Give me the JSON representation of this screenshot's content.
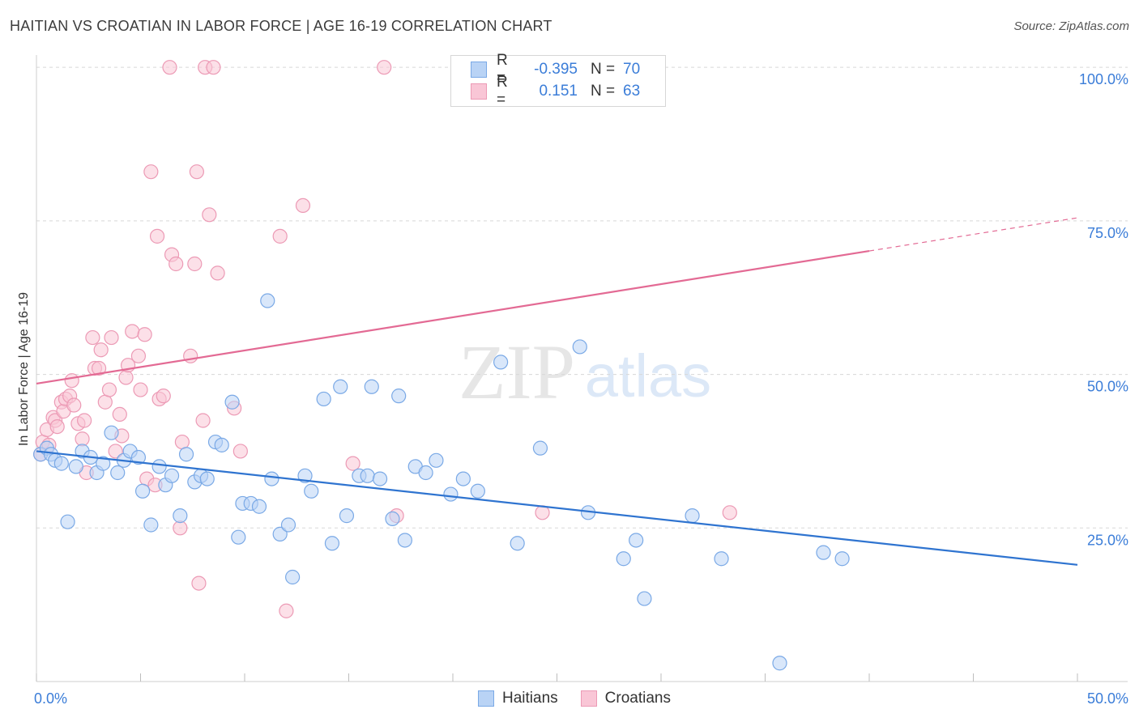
{
  "title": "HAITIAN VS CROATIAN IN LABOR FORCE | AGE 16-19 CORRELATION CHART",
  "source": "Source: ZipAtlas.com",
  "watermark": {
    "zip": "ZIP",
    "atlas": "atlas"
  },
  "colors": {
    "blue_fill": "#b9d3f5",
    "blue_stroke": "#7aa9e6",
    "blue_line": "#2f74d0",
    "pink_fill": "#f9c6d6",
    "pink_stroke": "#ec9ab5",
    "pink_line": "#e36a94",
    "grid": "#d8d8d8",
    "axis_text": "#3b7dd8"
  },
  "legend": {
    "rows": [
      {
        "r_label": "R =",
        "r_value": "-0.395",
        "n_label": "N =",
        "n_value": "70"
      },
      {
        "r_label": "R =",
        "r_value": "0.151",
        "n_label": "N =",
        "n_value": "63"
      }
    ]
  },
  "bottom_legend": {
    "haitians": "Haitians",
    "croatians": "Croatians"
  },
  "chart_data": {
    "type": "scatter",
    "title": "HAITIAN VS CROATIAN IN LABOR FORCE | AGE 16-19 CORRELATION CHART",
    "xlabel": "",
    "ylabel": "In Labor Force | Age 16-19",
    "xlim": [
      0,
      50
    ],
    "ylim": [
      0,
      102
    ],
    "x_tick_labels": [
      "0.0%",
      "50.0%"
    ],
    "y_ticks": [
      25,
      50,
      75,
      100
    ],
    "y_tick_labels": [
      "25.0%",
      "50.0%",
      "75.0%",
      "100.0%"
    ],
    "series": [
      {
        "name": "Haitians",
        "r": -0.395,
        "n": 70,
        "trend": {
          "x0": 0,
          "y0": 37.5,
          "x1": 50,
          "y1": 19.0
        },
        "points": [
          [
            0.2,
            37
          ],
          [
            0.5,
            38
          ],
          [
            0.7,
            37
          ],
          [
            0.9,
            36
          ],
          [
            1.2,
            35.5
          ],
          [
            1.5,
            26
          ],
          [
            1.9,
            35
          ],
          [
            2.2,
            37.5
          ],
          [
            2.6,
            36.5
          ],
          [
            2.9,
            34
          ],
          [
            3.2,
            35.5
          ],
          [
            3.6,
            40.5
          ],
          [
            3.9,
            34
          ],
          [
            4.2,
            36
          ],
          [
            4.5,
            37.5
          ],
          [
            4.9,
            36.5
          ],
          [
            5.1,
            31
          ],
          [
            5.5,
            25.5
          ],
          [
            5.9,
            35
          ],
          [
            6.2,
            32
          ],
          [
            6.5,
            33.5
          ],
          [
            6.9,
            27
          ],
          [
            7.2,
            37
          ],
          [
            7.6,
            32.5
          ],
          [
            7.9,
            33.5
          ],
          [
            8.2,
            33
          ],
          [
            8.6,
            39
          ],
          [
            8.9,
            38.5
          ],
          [
            9.4,
            45.5
          ],
          [
            9.7,
            23.5
          ],
          [
            9.9,
            29
          ],
          [
            10.3,
            29
          ],
          [
            10.7,
            28.5
          ],
          [
            11.1,
            62
          ],
          [
            11.3,
            33
          ],
          [
            11.7,
            24
          ],
          [
            12.1,
            25.5
          ],
          [
            12.3,
            17
          ],
          [
            12.9,
            33.5
          ],
          [
            13.2,
            31
          ],
          [
            13.8,
            46
          ],
          [
            14.2,
            22.5
          ],
          [
            14.6,
            48
          ],
          [
            14.9,
            27
          ],
          [
            15.5,
            33.5
          ],
          [
            15.9,
            33.5
          ],
          [
            16.1,
            48
          ],
          [
            16.5,
            33
          ],
          [
            17.1,
            26.5
          ],
          [
            17.4,
            46.5
          ],
          [
            17.7,
            23
          ],
          [
            18.2,
            35
          ],
          [
            18.7,
            34
          ],
          [
            19.2,
            36
          ],
          [
            19.9,
            30.5
          ],
          [
            20.5,
            33
          ],
          [
            21.2,
            31
          ],
          [
            22.3,
            52
          ],
          [
            23.1,
            22.5
          ],
          [
            24.2,
            38
          ],
          [
            26.1,
            54.5
          ],
          [
            26.5,
            27.5
          ],
          [
            28.2,
            20
          ],
          [
            28.8,
            23
          ],
          [
            29.2,
            13.5
          ],
          [
            31.5,
            27
          ],
          [
            32.9,
            20
          ],
          [
            35.7,
            3
          ],
          [
            37.8,
            21
          ],
          [
            38.7,
            20
          ]
        ]
      },
      {
        "name": "Croatians",
        "r": 0.151,
        "n": 63,
        "trend": {
          "x0": 0,
          "y0": 48.5,
          "x1": 50,
          "y1": 75.5,
          "solid_until_x": 40
        },
        "points": [
          [
            0.2,
            37
          ],
          [
            0.3,
            39
          ],
          [
            0.5,
            41
          ],
          [
            0.6,
            38.5
          ],
          [
            0.8,
            43
          ],
          [
            0.9,
            42.5
          ],
          [
            1.0,
            41.5
          ],
          [
            1.2,
            45.5
          ],
          [
            1.3,
            44
          ],
          [
            1.4,
            46
          ],
          [
            1.6,
            46.5
          ],
          [
            1.7,
            49
          ],
          [
            1.8,
            45
          ],
          [
            2.0,
            42
          ],
          [
            2.2,
            39.5
          ],
          [
            2.3,
            42.5
          ],
          [
            2.4,
            34
          ],
          [
            2.7,
            56
          ],
          [
            2.8,
            51
          ],
          [
            3.0,
            51
          ],
          [
            3.1,
            54
          ],
          [
            3.3,
            45.5
          ],
          [
            3.5,
            47.5
          ],
          [
            3.6,
            56
          ],
          [
            3.8,
            37.5
          ],
          [
            4.0,
            43.5
          ],
          [
            4.1,
            40
          ],
          [
            4.3,
            49.5
          ],
          [
            4.4,
            51.5
          ],
          [
            4.6,
            57
          ],
          [
            4.9,
            53
          ],
          [
            5.0,
            47.5
          ],
          [
            5.2,
            56.5
          ],
          [
            5.3,
            33
          ],
          [
            5.5,
            83
          ],
          [
            5.7,
            32
          ],
          [
            5.8,
            72.5
          ],
          [
            5.9,
            46
          ],
          [
            6.1,
            46.5
          ],
          [
            6.4,
            100
          ],
          [
            6.5,
            69.5
          ],
          [
            6.7,
            68
          ],
          [
            6.9,
            25
          ],
          [
            7.0,
            39
          ],
          [
            7.4,
            53
          ],
          [
            7.6,
            68
          ],
          [
            7.7,
            83
          ],
          [
            7.8,
            16
          ],
          [
            8.0,
            42.5
          ],
          [
            8.1,
            100
          ],
          [
            8.3,
            76
          ],
          [
            8.5,
            100
          ],
          [
            8.7,
            66.5
          ],
          [
            9.5,
            44.5
          ],
          [
            9.8,
            37.5
          ],
          [
            11.7,
            72.5
          ],
          [
            12.0,
            11.5
          ],
          [
            12.8,
            77.5
          ],
          [
            15.2,
            35.5
          ],
          [
            16.7,
            100
          ],
          [
            17.3,
            27
          ],
          [
            24.3,
            27.5
          ],
          [
            33.3,
            27.5
          ]
        ]
      }
    ]
  }
}
